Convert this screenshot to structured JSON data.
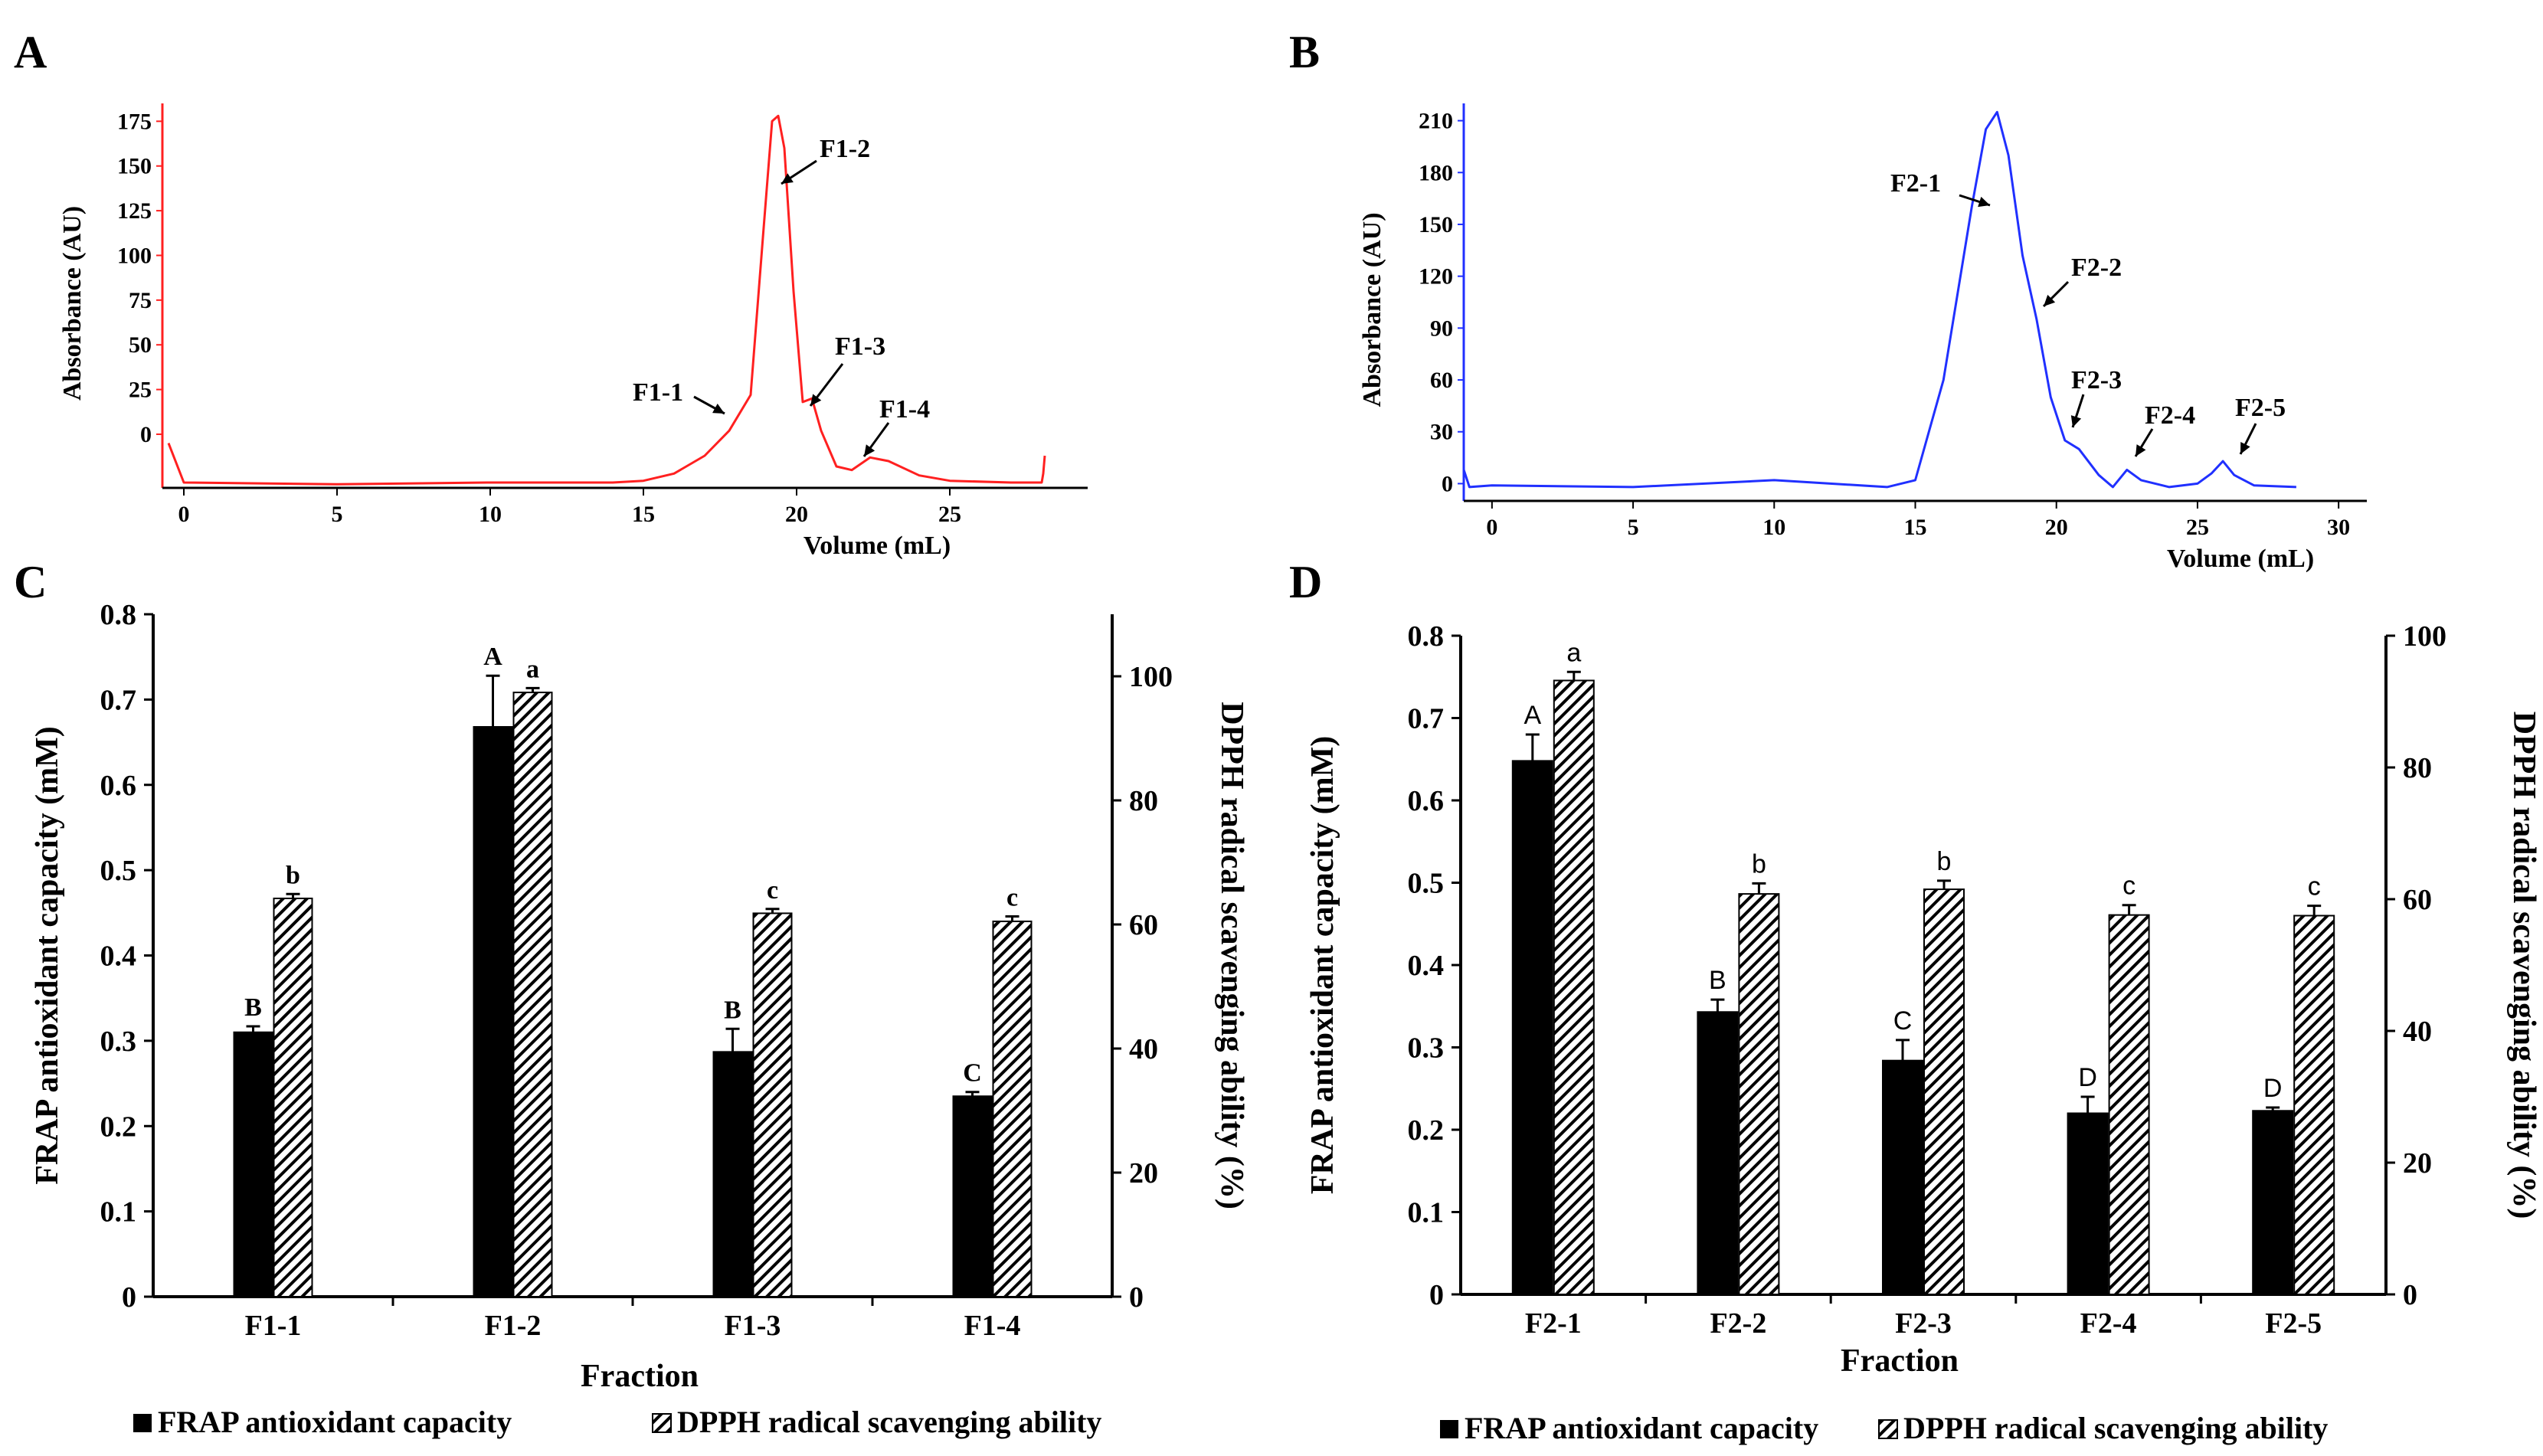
{
  "colors": {
    "red_trace": "#ff2020",
    "blue_trace": "#2030ff",
    "bar_frap": "#000000",
    "axis": "#000000"
  },
  "chart_data": [
    {
      "panel": "A",
      "type": "line",
      "xlabel": "Volume  (mL)",
      "ylabel": "Absorbance (AU)",
      "xlim": [
        -0.7,
        29.5
      ],
      "ylim": [
        -30,
        185
      ],
      "xticks": [
        0,
        5,
        10,
        15,
        20,
        25
      ],
      "yticks": [
        0,
        25,
        50,
        75,
        100,
        125,
        150,
        175
      ],
      "series": [
        {
          "name": "absorbance",
          "x": [
            -0.5,
            0,
            5,
            10,
            14,
            15,
            16,
            17,
            17.8,
            18.5,
            18.9,
            19.2,
            19.4,
            19.6,
            19.9,
            20.2,
            20.5,
            20.8,
            21.3,
            21.8,
            22.4,
            23,
            24,
            25,
            27,
            28,
            28.05,
            28.1
          ],
          "y": [
            -5,
            -27,
            -28,
            -27,
            -27,
            -26,
            -22,
            -12,
            2,
            22,
            110,
            175,
            178,
            160,
            80,
            18,
            20,
            2,
            -18,
            -20,
            -13,
            -15,
            -23,
            -26,
            -27,
            -27,
            -22,
            -12
          ]
        }
      ],
      "annotations": [
        "F1-1",
        "F1-2",
        "F1-3",
        "F1-4"
      ]
    },
    {
      "panel": "B",
      "type": "line",
      "xlabel": "Volume  (mL)",
      "ylabel": "Absorbance (AU)",
      "xlim": [
        -1,
        31
      ],
      "ylim": [
        -10,
        220
      ],
      "xticks": [
        0,
        5,
        10,
        15,
        20,
        25,
        30
      ],
      "yticks": [
        0,
        30,
        60,
        90,
        120,
        150,
        180,
        210
      ],
      "series": [
        {
          "name": "absorbance",
          "x": [
            -1,
            -0.8,
            0,
            5,
            10,
            14,
            15,
            16,
            17,
            17.5,
            17.9,
            18.3,
            18.8,
            19.3,
            19.8,
            20.3,
            20.8,
            21.5,
            22,
            22.5,
            23,
            24,
            25,
            25.5,
            25.9,
            26.3,
            27,
            28.5
          ],
          "y": [
            8,
            -2,
            -1,
            -2,
            2,
            -2,
            2,
            60,
            160,
            205,
            215,
            190,
            132,
            95,
            50,
            25,
            20,
            5,
            -2,
            8,
            2,
            -2,
            0,
            6,
            13,
            5,
            -1,
            -2
          ]
        }
      ],
      "annotations": [
        "F2-1",
        "F2-2",
        "F2-3",
        "F2-4",
        "F2-5"
      ]
    },
    {
      "panel": "C",
      "type": "bar",
      "xlabel": "Fraction",
      "ylabel_left": "FRAP antioxidant capacity (mM)",
      "ylabel_right": "DPPH radical scavenging ability (%)",
      "ylim_left": [
        0,
        0.8
      ],
      "ylim_right": [
        0,
        110
      ],
      "yticks_left": [
        "0",
        "0.1",
        "0.2",
        "0.3",
        "0.4",
        "0.5",
        "0.6",
        "0.7",
        "0.8"
      ],
      "yticks_right": [
        "0",
        "20",
        "40",
        "60",
        "80",
        "100"
      ],
      "categories": [
        "F1-1",
        "F1-2",
        "F1-3",
        "F1-4"
      ],
      "series": [
        {
          "name": "FRAP antioxidant capacity",
          "axis": "left",
          "values": [
            0.31,
            0.668,
            0.287,
            0.235
          ],
          "errors": [
            0.007,
            0.06,
            0.027,
            0.005
          ],
          "letters": [
            "B",
            "A",
            "B",
            "C"
          ]
        },
        {
          "name": "DPPH radical scavenging ability",
          "axis": "right",
          "values": [
            64.2,
            97.4,
            61.8,
            60.5
          ],
          "errors": [
            0.7,
            0.7,
            0.7,
            0.8
          ],
          "letters": [
            "b",
            "a",
            "c",
            "c"
          ]
        }
      ]
    },
    {
      "panel": "D",
      "type": "bar",
      "xlabel": "Fraction",
      "ylabel_left": "FRAP antioxidant capacity (mM)",
      "ylabel_right": "DPPH radical scavenging ability (%)",
      "ylim_left": [
        0,
        0.8
      ],
      "ylim_right": [
        0,
        100
      ],
      "yticks_left": [
        "0",
        "0.1",
        "0.2",
        "0.3",
        "0.4",
        "0.5",
        "0.6",
        "0.7",
        "0.8"
      ],
      "yticks_right": [
        "0",
        "20",
        "40",
        "60",
        "80",
        "100"
      ],
      "categories": [
        "F2-1",
        "F2-2",
        "F2-3",
        "F2-4",
        "F2-5"
      ],
      "series": [
        {
          "name": "FRAP antioxidant capacity",
          "axis": "left",
          "values": [
            0.648,
            0.343,
            0.284,
            0.22,
            0.223
          ],
          "errors": [
            0.032,
            0.015,
            0.025,
            0.02,
            0.004
          ],
          "letters": [
            "A",
            "B",
            "C",
            "D",
            "D"
          ]
        },
        {
          "name": "DPPH radical scavenging ability",
          "axis": "right",
          "values": [
            93.2,
            60.8,
            61.5,
            57.6,
            57.5
          ],
          "errors": [
            1.3,
            1.6,
            1.3,
            1.5,
            1.5
          ],
          "letters": [
            "a",
            "b",
            "b",
            "c",
            "c"
          ]
        }
      ]
    }
  ]
}
